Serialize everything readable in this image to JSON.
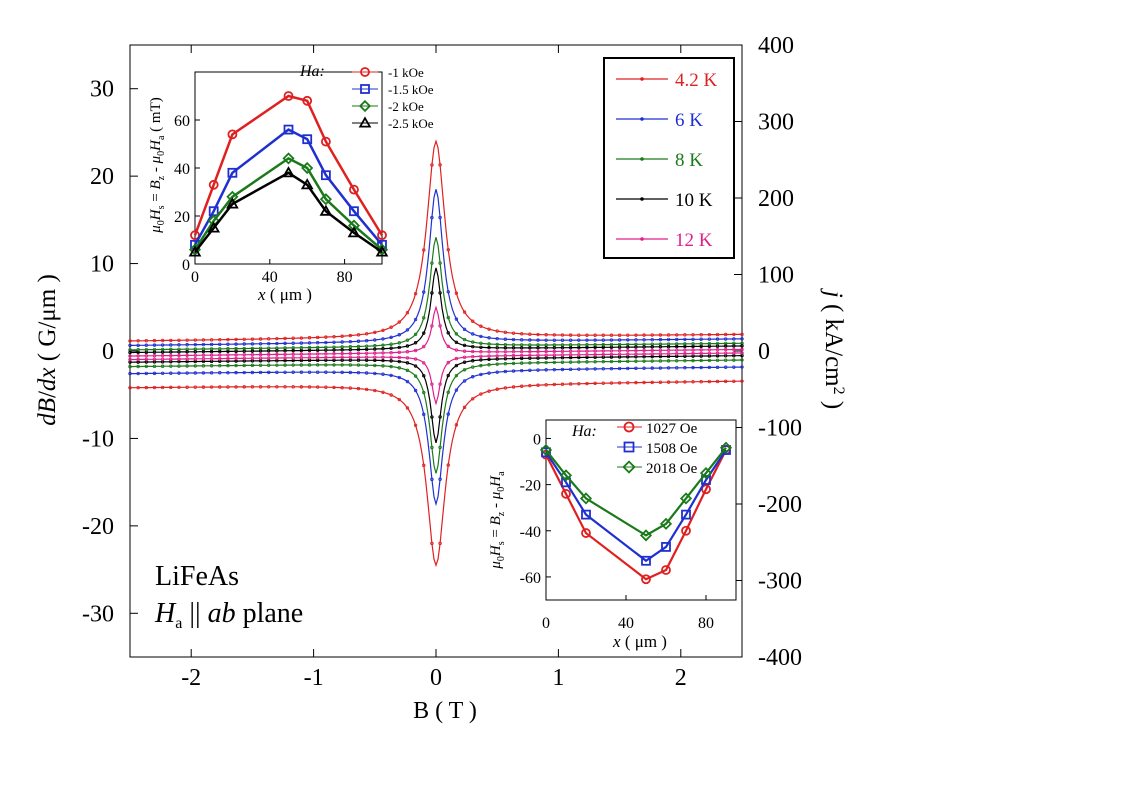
{
  "chart_data": [
    {
      "id": "main",
      "type": "line",
      "xlabel": "B ( T )",
      "ylabel_left": "dB/dx ( G/μm )",
      "ylabel_right": "j ( kA/cm2 )",
      "xlim": [
        -2.5,
        2.5
      ],
      "ylim_left": [
        -35,
        35
      ],
      "ylim_right": [
        -400,
        400
      ],
      "xticks": [
        "-2",
        "-1",
        "0",
        "1",
        "2"
      ],
      "yticks_left": [
        "30",
        "20",
        "10",
        "0",
        "-10",
        "-20",
        "-30"
      ],
      "yticks_right": [
        "400",
        "300",
        "200",
        "100",
        "0",
        "-100",
        "-200",
        "-300",
        "-400"
      ],
      "annotation": {
        "material": "LiFeAs",
        "field_symbol": "H",
        "field_sub": "a",
        "parallel": "||",
        "plane_italic": "ab",
        "plane_word": "plane"
      },
      "legend_position": "top-right",
      "series": [
        {
          "name": "4.2 K",
          "color": "#e02020",
          "peak_up": 24,
          "peak_down": -24.5,
          "tail_upper": 1.5,
          "tail_lower": -3.8,
          "width": 0.09
        },
        {
          "name": "6 K",
          "color": "#2030d0",
          "peak_up": 18.5,
          "peak_down": -17.5,
          "tail_upper": 1.0,
          "tail_lower": -2.2,
          "width": 0.07
        },
        {
          "name": "8 K",
          "color": "#1a7a1a",
          "peak_up": 13.0,
          "peak_down": -14.0,
          "tail_upper": 0.5,
          "tail_lower": -1.4,
          "width": 0.06
        },
        {
          "name": "10 K",
          "color": "#000000",
          "peak_up": 9.5,
          "peak_down": -10.5,
          "tail_upper": 0.2,
          "tail_lower": -0.9,
          "width": 0.05
        },
        {
          "name": "12 K",
          "color": "#e0208a",
          "peak_up": 5.0,
          "peak_down": -6.0,
          "tail_upper": -0.2,
          "tail_lower": -0.6,
          "width": 0.04
        }
      ]
    },
    {
      "id": "inset1",
      "type": "line",
      "xlabel": "x ( μm )",
      "ylabel": "μ0Hs = Bz - μ0Ha ( mT)",
      "xlim": [
        0,
        100
      ],
      "ylim": [
        0,
        80
      ],
      "xticks": [
        "0",
        "40",
        "80"
      ],
      "yticks": [
        "0",
        "20",
        "40",
        "60"
      ],
      "legend_title": "Ha:",
      "x": [
        0,
        10,
        20,
        50,
        60,
        70,
        85,
        100
      ],
      "series": [
        {
          "name": "-1 kOe",
          "color": "#e02020",
          "marker": "circle",
          "values": [
            12,
            33,
            54,
            70,
            68,
            51,
            31,
            12
          ]
        },
        {
          "name": "-1.5 kOe",
          "color": "#2030d0",
          "marker": "square",
          "values": [
            8,
            22,
            38,
            56,
            52,
            37,
            22,
            8
          ]
        },
        {
          "name": "-2 kOe",
          "color": "#1a7a1a",
          "marker": "diamond",
          "values": [
            6,
            18,
            28,
            44,
            40,
            27,
            16,
            6
          ]
        },
        {
          "name": "-2.5 kOe",
          "color": "#000000",
          "marker": "triangle",
          "values": [
            5,
            15,
            25,
            38,
            33,
            22,
            13,
            5
          ]
        }
      ]
    },
    {
      "id": "inset2",
      "type": "line",
      "xlabel": "x ( μm )",
      "ylabel": "μ0Hs = Bz - μ0Ha",
      "xlim": [
        0,
        95
      ],
      "ylim": [
        -70,
        8
      ],
      "xticks": [
        "0",
        "40",
        "80"
      ],
      "yticks": [
        "0",
        "-20",
        "-40",
        "-60"
      ],
      "legend_title": "Ha:",
      "x": [
        0,
        10,
        20,
        50,
        60,
        70,
        80,
        90
      ],
      "series": [
        {
          "name": "1027 Oe",
          "color": "#e02020",
          "marker": "circle",
          "values": [
            -7,
            -24,
            -41,
            -61,
            -57,
            -40,
            -22,
            -5
          ]
        },
        {
          "name": "1508 Oe",
          "color": "#2030d0",
          "marker": "square",
          "values": [
            -6,
            -19,
            -33,
            -53,
            -47,
            -33,
            -18,
            -5
          ]
        },
        {
          "name": "2018 Oe",
          "color": "#1a7a1a",
          "marker": "diamond",
          "values": [
            -5,
            -16,
            -26,
            -42,
            -37,
            -26,
            -15,
            -4
          ]
        }
      ]
    }
  ]
}
